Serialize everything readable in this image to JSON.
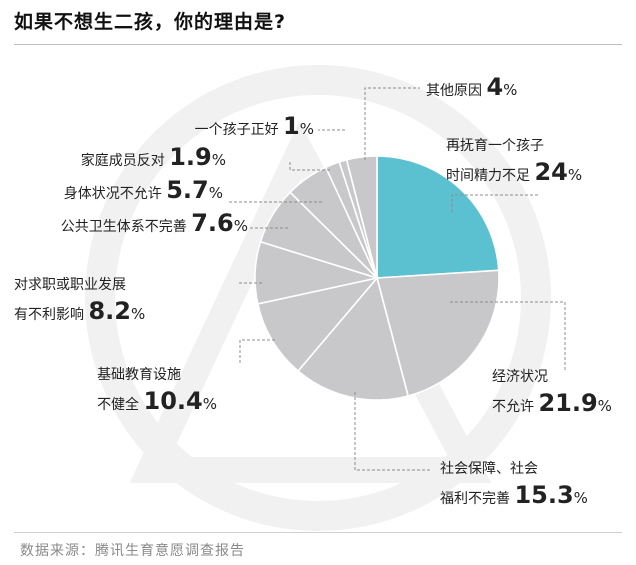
{
  "title": "如果不想生二孩，你的理由是?",
  "source": "数据来源：腾讯生育意愿调查报告",
  "chart_data": {
    "type": "pie",
    "title": "如果不想生二孩，你的理由是?",
    "unit": "%",
    "highlight_color": "#5bc0d0",
    "slice_color": "#c8c8ca",
    "slices": [
      {
        "label_lines": [
          "再抚育一个孩子",
          "时间精力不足"
        ],
        "num": "24",
        "value": 24
      },
      {
        "label_lines": [
          "经济状况",
          "不允许"
        ],
        "num": "21.9",
        "value": 21.9
      },
      {
        "label_lines": [
          "社会保障、社会",
          "福利不完善"
        ],
        "num": "15.3",
        "value": 15.3
      },
      {
        "label_lines": [
          "基础教育设施",
          "不健全"
        ],
        "num": "10.4",
        "value": 10.4
      },
      {
        "label_lines": [
          "对求职或职业发展",
          "有不利影响"
        ],
        "num": "8.2",
        "value": 8.2
      },
      {
        "label_lines": [
          "公共卫生体系不完善"
        ],
        "num": "7.6",
        "value": 7.6
      },
      {
        "label_lines": [
          "身体状况不允许"
        ],
        "num": "5.7",
        "value": 5.7
      },
      {
        "label_lines": [
          "家庭成员反对"
        ],
        "num": "1.9",
        "value": 1.9
      },
      {
        "label_lines": [
          "一个孩子正好"
        ],
        "num": "1",
        "value": 1
      },
      {
        "label_lines": [
          "其他原因"
        ],
        "num": "4",
        "value": 4
      }
    ]
  }
}
